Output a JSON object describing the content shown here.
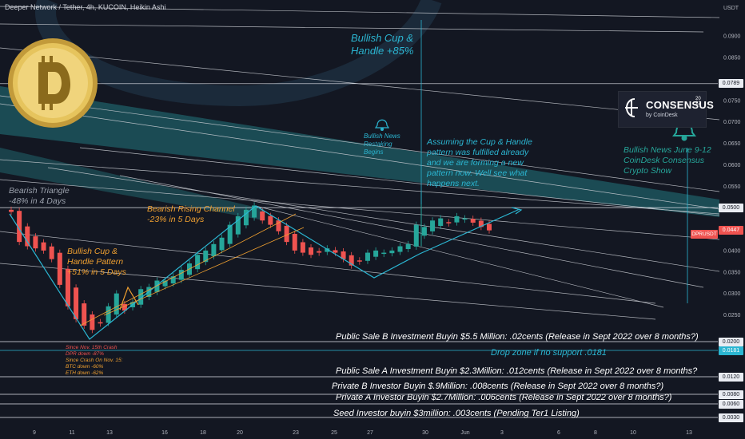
{
  "header": {
    "title": "Deeper Network / Tether, 4h, KUCOIN, Heikin Ashi"
  },
  "axis": {
    "currency": "USDT",
    "y_ticks": [
      "0.0900",
      "0.0850",
      "0.0750",
      "0.0700",
      "0.0650",
      "0.0600",
      "0.0550",
      "0.0450",
      "0.0400",
      "0.0350",
      "0.0300",
      "0.0250"
    ],
    "x_ticks": [
      "9",
      "11",
      "13",
      "16",
      "18",
      "20",
      "23",
      "25",
      "27",
      "30",
      "Jun",
      "3",
      "6",
      "8",
      "10",
      "13"
    ]
  },
  "price_tags": [
    {
      "label": "0.0789",
      "style": "white"
    },
    {
      "label": "0.0500",
      "style": "white"
    },
    {
      "label": "0.0447",
      "style": "red"
    },
    {
      "label": "0.0200",
      "style": "white"
    },
    {
      "label": "0.0181",
      "style": "blue"
    },
    {
      "label": "0.0120",
      "style": "white"
    },
    {
      "label": "0.0080",
      "style": "white"
    },
    {
      "label": "0.0060",
      "style": "white"
    },
    {
      "label": "0.0030",
      "style": "white"
    }
  ],
  "symbol_tag": "DPRUSDT",
  "annotations": {
    "cup_handle_top": {
      "line1": "Bullish Cup &",
      "line2": "Handle +85%"
    },
    "bullish_news_restaking": {
      "line1": "Bullish News",
      "line2": "Restaking",
      "line3": "Begins"
    },
    "assumption": {
      "line1": "Assuming the Cup & Handle",
      "line2": "pattern was fulfilled already",
      "line3": "and we are forming a new",
      "line4": "pattern now. Well see what",
      "line5": "happens next."
    },
    "bullish_news_june": {
      "line1": "Bullish News June 9-12",
      "line2": "CoinDesk Consensus",
      "line3": "Crypto Show"
    },
    "bearish_triangle": {
      "line1": "Bearish Triangle",
      "line2": "-48% in 4 Days"
    },
    "bearish_channel": {
      "line1": "Bearish Rising Channel",
      "line2": "-23% in 5 Days"
    },
    "cup_handle_pattern": {
      "line1": "Bullish Cup &",
      "line2": "Handle Pattern",
      "line3": "+51% in 5 Days"
    },
    "crash_notes": {
      "line1": "Since Nov. 15th Crash",
      "line2": "DPR down -87%",
      "line3": "Since Crash On Nov. 15:",
      "line4": "BTC down -60%",
      "line5": "ETH down -62%"
    },
    "public_sale_b": "Public Sale B Investment Buyin $5.5 Million: .02cents (Release in Sept 2022 over 8 months?)",
    "drop_zone": "Drop zone if no support .0181",
    "public_sale_a": "Public Sale A Investment Buyin $2.3Million: .012cents (Release in Sept 2022 over 8 months?",
    "private_b": "Private B Investor Buyin $.9Million: .008cents (Release in Sept 2022 over 8 months?)",
    "private_a": "Private A Investor Buyin $2.7Million: .006cents (Release in Sept 2022 over 8 months?)",
    "seed": "Seed Investor buyin $3million: .003cents (Pending Ter1 Listing)"
  },
  "consensus_logo": {
    "brand": "CONSENSUS",
    "year_top": "20",
    "year_bottom": "22",
    "sub": "by CoinDesk"
  },
  "colors": {
    "background": "#131722",
    "up": "#26a69a",
    "down": "#ef5350",
    "accent": "#2bb5d1",
    "orange": "#f0a030",
    "grid_text": "#b2b5be"
  },
  "chart_data": {
    "type": "candlestick",
    "title": "Deeper Network / Tether, 4h, KUCOIN, Heikin Ashi",
    "ylabel": "USDT",
    "ylim": [
      0.003,
      0.093
    ],
    "x_ticks": [
      "9",
      "11",
      "13",
      "16",
      "18",
      "20",
      "23",
      "25",
      "27",
      "30",
      "Jun",
      "3",
      "6",
      "8",
      "10",
      "13"
    ],
    "horizontal_levels": [
      0.0789,
      0.05,
      0.02,
      0.0181,
      0.012,
      0.008,
      0.006,
      0.003
    ],
    "last_price": 0.0447,
    "close_path": [
      [
        0,
        0.049
      ],
      [
        2,
        0.042
      ],
      [
        4,
        0.041
      ],
      [
        6,
        0.0405
      ],
      [
        8,
        0.04
      ],
      [
        9,
        0.038
      ],
      [
        10,
        0.032
      ],
      [
        11,
        0.027
      ],
      [
        12,
        0.024
      ],
      [
        13,
        0.0225
      ],
      [
        14,
        0.0215
      ],
      [
        15,
        0.023
      ],
      [
        16,
        0.027
      ],
      [
        17,
        0.03
      ],
      [
        18,
        0.026
      ],
      [
        19,
        0.028
      ],
      [
        20,
        0.031
      ],
      [
        21,
        0.0315
      ],
      [
        22,
        0.033
      ],
      [
        23,
        0.033
      ],
      [
        24,
        0.034
      ],
      [
        25,
        0.0355
      ],
      [
        26,
        0.037
      ],
      [
        27,
        0.039
      ],
      [
        28,
        0.04
      ],
      [
        29,
        0.0415
      ],
      [
        30,
        0.043
      ],
      [
        31,
        0.046
      ],
      [
        32,
        0.048
      ],
      [
        33,
        0.0495
      ],
      [
        34,
        0.0505
      ],
      [
        35,
        0.047
      ],
      [
        36,
        0.046
      ],
      [
        37,
        0.0445
      ],
      [
        38,
        0.042
      ],
      [
        39,
        0.04
      ],
      [
        40,
        0.0395
      ],
      [
        41,
        0.039
      ],
      [
        42,
        0.0395
      ],
      [
        43,
        0.0405
      ],
      [
        44,
        0.0395
      ],
      [
        45,
        0.038
      ],
      [
        46,
        0.0365
      ],
      [
        47,
        0.0375
      ],
      [
        48,
        0.0395
      ],
      [
        49,
        0.04
      ],
      [
        50,
        0.0395
      ],
      [
        51,
        0.04
      ],
      [
        52,
        0.041
      ],
      [
        53,
        0.0415
      ],
      [
        54,
        0.046
      ],
      [
        55,
        0.0455
      ],
      [
        56,
        0.047
      ],
      [
        57,
        0.0475
      ],
      [
        58,
        0.0465
      ],
      [
        59,
        0.048
      ],
      [
        60,
        0.0475
      ],
      [
        61,
        0.0465
      ],
      [
        62,
        0.0455
      ],
      [
        63,
        0.0447
      ]
    ]
  }
}
